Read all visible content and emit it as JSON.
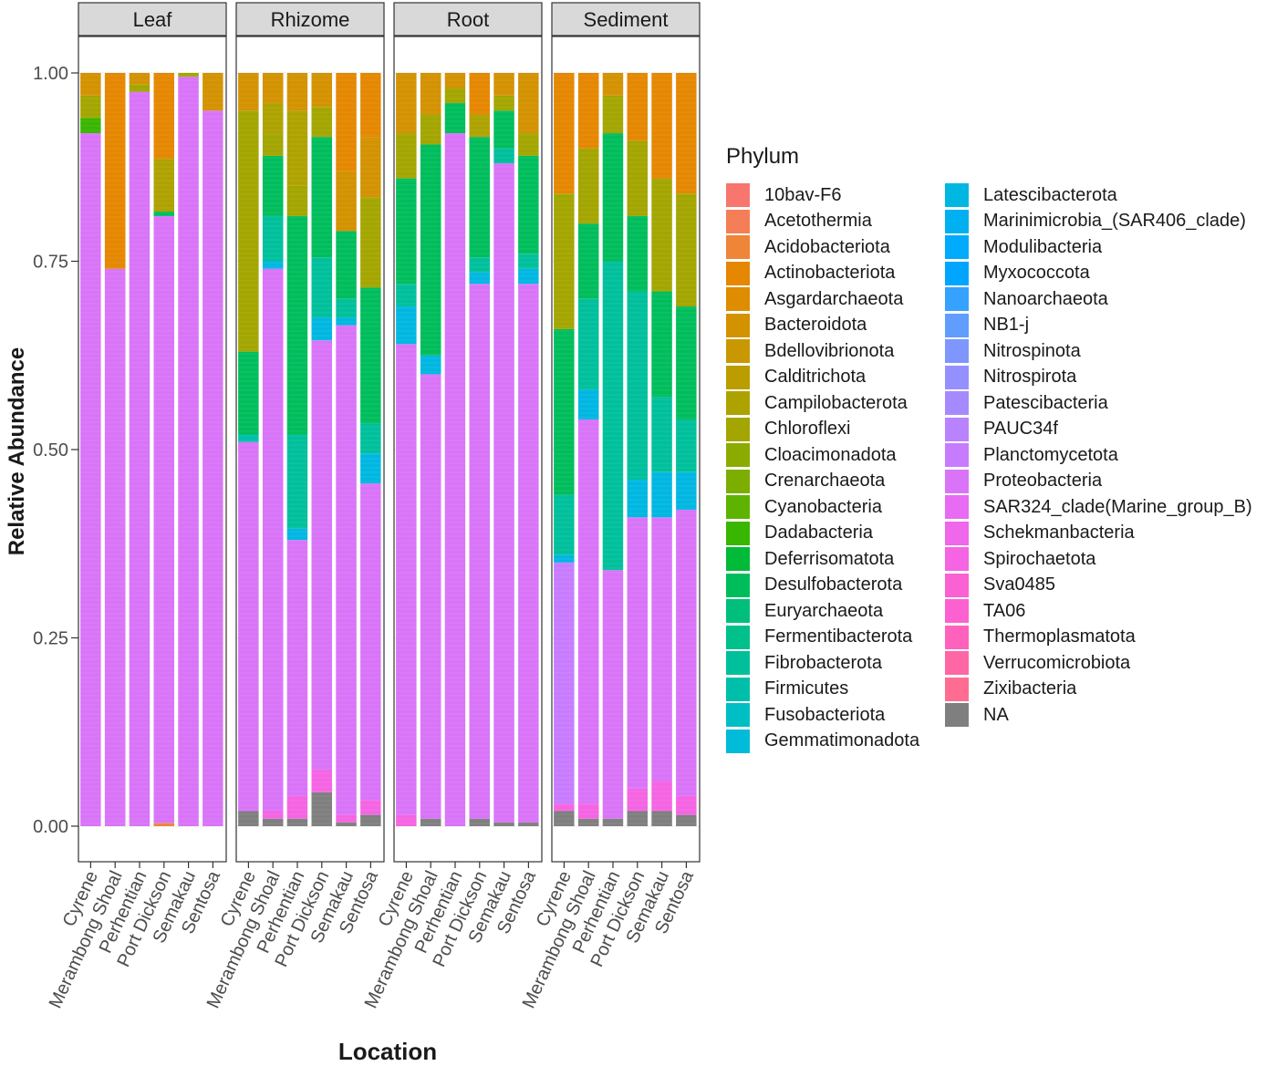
{
  "chart_data": {
    "type": "bar",
    "stacked": true,
    "facets": [
      "Leaf",
      "Rhizome",
      "Root",
      "Sediment"
    ],
    "categories": [
      "Cyrene",
      "Merambong Shoal",
      "Perhentian",
      "Port Dickson",
      "Semakau",
      "Sentosa"
    ],
    "xlabel": "Location",
    "ylabel": "Relative Abundance",
    "ylim": [
      0,
      1
    ],
    "yticks": [
      "0.00",
      "0.25",
      "0.50",
      "0.75",
      "1.00"
    ],
    "legend_title": "Phylum",
    "legend_position": "right",
    "legend": [
      {
        "name": "10bav-F6",
        "color": "#F8766D"
      },
      {
        "name": "Acetothermia",
        "color": "#F47E57"
      },
      {
        "name": "Acidobacteriota",
        "color": "#EE8538"
      },
      {
        "name": "Actinobacteriota",
        "color": "#E58700"
      },
      {
        "name": "Asgardarchaeota",
        "color": "#DE8C00"
      },
      {
        "name": "Bacteroidota",
        "color": "#D39200"
      },
      {
        "name": "Bdellovibrionota",
        "color": "#C99800"
      },
      {
        "name": "Calditrichota",
        "color": "#BB9D00"
      },
      {
        "name": "Campilobacterota",
        "color": "#AEA200"
      },
      {
        "name": "Chloroflexi",
        "color": "#A3A500"
      },
      {
        "name": "Cloacimonadota",
        "color": "#8CAB00"
      },
      {
        "name": "Crenarchaeota",
        "color": "#7CAE00"
      },
      {
        "name": "Cyanobacteria",
        "color": "#5EB300"
      },
      {
        "name": "Dadabacteria",
        "color": "#39B600"
      },
      {
        "name": "Deferrisomatota",
        "color": "#00BA38"
      },
      {
        "name": "Desulfobacterota",
        "color": "#00BD5C"
      },
      {
        "name": "Euryarchaeota",
        "color": "#00BF7D"
      },
      {
        "name": "Fermentibacterota",
        "color": "#00C08B"
      },
      {
        "name": "Fibrobacterota",
        "color": "#00C09B"
      },
      {
        "name": "Firmicutes",
        "color": "#00BFAA"
      },
      {
        "name": "Fusobacteriota",
        "color": "#00BFC4"
      },
      {
        "name": "Gemmatimonadota",
        "color": "#00BCD8"
      },
      {
        "name": "Latescibacterota",
        "color": "#00B7E2"
      },
      {
        "name": "Marinimicrobia_(SAR406_clade)",
        "color": "#00B0F0"
      },
      {
        "name": "Modulibacteria",
        "color": "#00ABFD"
      },
      {
        "name": "Myxococcota",
        "color": "#00A5FF"
      },
      {
        "name": "Nanoarchaeota",
        "color": "#35A2FF"
      },
      {
        "name": "NB1-j",
        "color": "#619CFF"
      },
      {
        "name": "Nitrospinota",
        "color": "#7F96FF"
      },
      {
        "name": "Nitrospirota",
        "color": "#9590FF"
      },
      {
        "name": "Patescibacteria",
        "color": "#A58AFF"
      },
      {
        "name": "PAUC34f",
        "color": "#B983FF"
      },
      {
        "name": "Planctomycetota",
        "color": "#C77CFF"
      },
      {
        "name": "Proteobacteria",
        "color": "#D974F8"
      },
      {
        "name": "SAR324_clade(Marine_group_B)",
        "color": "#E76BF3"
      },
      {
        "name": "Schekmanbacteria",
        "color": "#EF67EB"
      },
      {
        "name": "Spirochaetota",
        "color": "#F564E3"
      },
      {
        "name": "Sva0485",
        "color": "#FA62D4"
      },
      {
        "name": "TA06",
        "color": "#FD61D1"
      },
      {
        "name": "Thermoplasmatota",
        "color": "#FF62BC"
      },
      {
        "name": "Verrucomicrobiota",
        "color": "#FF67A4"
      },
      {
        "name": "Zixibacteria",
        "color": "#FF6C91"
      },
      {
        "name": "NA",
        "color": "#7F7F7F"
      }
    ],
    "series": {
      "Leaf": [
        [
          {
            "p": "NA",
            "v": 0.0
          },
          {
            "p": "Proteobacteria",
            "v": 0.92
          },
          {
            "p": "Dadabacteria",
            "v": 0.02
          },
          {
            "p": "Chloroflexi",
            "v": 0.03
          },
          {
            "p": "Bacteroidota",
            "v": 0.03
          }
        ],
        [
          {
            "p": "Proteobacteria",
            "v": 0.74
          },
          {
            "p": "Actinobacteriota",
            "v": 0.26
          }
        ],
        [
          {
            "p": "Proteobacteria",
            "v": 0.975
          },
          {
            "p": "Chloroflexi",
            "v": 0.01
          },
          {
            "p": "Bacteroidota",
            "v": 0.015
          }
        ],
        [
          {
            "p": "Acidobacteriota",
            "v": 0.004
          },
          {
            "p": "Proteobacteria",
            "v": 0.806
          },
          {
            "p": "Desulfobacterota",
            "v": 0.006
          },
          {
            "p": "Campilobacterota",
            "v": 0.07
          },
          {
            "p": "Actinobacteriota",
            "v": 0.114
          }
        ],
        [
          {
            "p": "Proteobacteria",
            "v": 0.995
          },
          {
            "p": "Chloroflexi",
            "v": 0.005
          }
        ],
        [
          {
            "p": "Proteobacteria",
            "v": 0.95
          },
          {
            "p": "Bacteroidota",
            "v": 0.05
          }
        ]
      ],
      "Rhizome": [
        [
          {
            "p": "NA",
            "v": 0.02
          },
          {
            "p": "Proteobacteria",
            "v": 0.49
          },
          {
            "p": "Firmicutes",
            "v": 0.01
          },
          {
            "p": "Desulfobacterota",
            "v": 0.11
          },
          {
            "p": "Chloroflexi",
            "v": 0.32
          },
          {
            "p": "Bacteroidota",
            "v": 0.05
          }
        ],
        [
          {
            "p": "NA",
            "v": 0.01
          },
          {
            "p": "Spirochaetota",
            "v": 0.01
          },
          {
            "p": "Proteobacteria",
            "v": 0.72
          },
          {
            "p": "Latescibacterota",
            "v": 0.01
          },
          {
            "p": "Fibrobacterota",
            "v": 0.06
          },
          {
            "p": "Desulfobacterota",
            "v": 0.08
          },
          {
            "p": "Chloroflexi",
            "v": 0.03
          },
          {
            "p": "Campilobacterota",
            "v": 0.04
          },
          {
            "p": "Bacteroidota",
            "v": 0.04
          }
        ],
        [
          {
            "p": "NA",
            "v": 0.01
          },
          {
            "p": "Spirochaetota",
            "v": 0.03
          },
          {
            "p": "Proteobacteria",
            "v": 0.34
          },
          {
            "p": "Latescibacterota",
            "v": 0.015
          },
          {
            "p": "Fibrobacterota",
            "v": 0.125
          },
          {
            "p": "Desulfobacterota",
            "v": 0.29
          },
          {
            "p": "Chloroflexi",
            "v": 0.04
          },
          {
            "p": "Campilobacterota",
            "v": 0.1
          },
          {
            "p": "Bacteroidota",
            "v": 0.05
          }
        ],
        [
          {
            "p": "NA",
            "v": 0.045
          },
          {
            "p": "Spirochaetota",
            "v": 0.03
          },
          {
            "p": "Proteobacteria",
            "v": 0.57
          },
          {
            "p": "Latescibacterota",
            "v": 0.03
          },
          {
            "p": "Fibrobacterota",
            "v": 0.08
          },
          {
            "p": "Desulfobacterota",
            "v": 0.16
          },
          {
            "p": "Chloroflexi",
            "v": 0.04
          },
          {
            "p": "Bacteroidota",
            "v": 0.045
          }
        ],
        [
          {
            "p": "NA",
            "v": 0.005
          },
          {
            "p": "Spirochaetota",
            "v": 0.01
          },
          {
            "p": "Proteobacteria",
            "v": 0.65
          },
          {
            "p": "Latescibacterota",
            "v": 0.01
          },
          {
            "p": "Fibrobacterota",
            "v": 0.025
          },
          {
            "p": "Desulfobacterota",
            "v": 0.09
          },
          {
            "p": "Bacteroidota",
            "v": 0.08
          },
          {
            "p": "Actinobacteriota",
            "v": 0.13
          }
        ],
        [
          {
            "p": "NA",
            "v": 0.015
          },
          {
            "p": "Spirochaetota",
            "v": 0.02
          },
          {
            "p": "Proteobacteria",
            "v": 0.42
          },
          {
            "p": "Latescibacterota",
            "v": 0.04
          },
          {
            "p": "Fibrobacterota",
            "v": 0.04
          },
          {
            "p": "Desulfobacterota",
            "v": 0.18
          },
          {
            "p": "Chloroflexi",
            "v": 0.12
          },
          {
            "p": "Bacteroidota",
            "v": 0.08
          },
          {
            "p": "Actinobacteriota",
            "v": 0.085
          }
        ]
      ],
      "Root": [
        [
          {
            "p": "Spirochaetota",
            "v": 0.015
          },
          {
            "p": "Proteobacteria",
            "v": 0.625
          },
          {
            "p": "Latescibacterota",
            "v": 0.05
          },
          {
            "p": "Fibrobacterota",
            "v": 0.03
          },
          {
            "p": "Desulfobacterota",
            "v": 0.14
          },
          {
            "p": "Chloroflexi",
            "v": 0.06
          },
          {
            "p": "Bacteroidota",
            "v": 0.08
          }
        ],
        [
          {
            "p": "NA",
            "v": 0.01
          },
          {
            "p": "Proteobacteria",
            "v": 0.59
          },
          {
            "p": "Latescibacterota",
            "v": 0.025
          },
          {
            "p": "Desulfobacterota",
            "v": 0.28
          },
          {
            "p": "Chloroflexi",
            "v": 0.04
          },
          {
            "p": "Bacteroidota",
            "v": 0.055
          }
        ],
        [
          {
            "p": "Proteobacteria",
            "v": 0.92
          },
          {
            "p": "Desulfobacterota",
            "v": 0.04
          },
          {
            "p": "Chloroflexi",
            "v": 0.02
          },
          {
            "p": "Bacteroidota",
            "v": 0.02
          }
        ],
        [
          {
            "p": "NA",
            "v": 0.01
          },
          {
            "p": "Proteobacteria",
            "v": 0.71
          },
          {
            "p": "Latescibacterota",
            "v": 0.015
          },
          {
            "p": "Fibrobacterota",
            "v": 0.02
          },
          {
            "p": "Desulfobacterota",
            "v": 0.16
          },
          {
            "p": "Campilobacterota",
            "v": 0.03
          },
          {
            "p": "Actinobacteriota",
            "v": 0.055
          }
        ],
        [
          {
            "p": "NA",
            "v": 0.005
          },
          {
            "p": "Proteobacteria",
            "v": 0.875
          },
          {
            "p": "Fibrobacterota",
            "v": 0.02
          },
          {
            "p": "Desulfobacterota",
            "v": 0.05
          },
          {
            "p": "Chloroflexi",
            "v": 0.02
          },
          {
            "p": "Bacteroidota",
            "v": 0.03
          }
        ],
        [
          {
            "p": "NA",
            "v": 0.005
          },
          {
            "p": "Proteobacteria",
            "v": 0.715
          },
          {
            "p": "Latescibacterota",
            "v": 0.02
          },
          {
            "p": "Fibrobacterota",
            "v": 0.02
          },
          {
            "p": "Desulfobacterota",
            "v": 0.13
          },
          {
            "p": "Chloroflexi",
            "v": 0.03
          },
          {
            "p": "Bacteroidota",
            "v": 0.08
          }
        ]
      ],
      "Sediment": [
        [
          {
            "p": "NA",
            "v": 0.02
          },
          {
            "p": "Spirochaetota",
            "v": 0.01
          },
          {
            "p": "Planctomycetota",
            "v": 0.32
          },
          {
            "p": "Latescibacterota",
            "v": 0.01
          },
          {
            "p": "Fibrobacterota",
            "v": 0.08
          },
          {
            "p": "Desulfobacterota",
            "v": 0.22
          },
          {
            "p": "Chloroflexi",
            "v": 0.18
          },
          {
            "p": "Actinobacteriota",
            "v": 0.16
          }
        ],
        [
          {
            "p": "NA",
            "v": 0.01
          },
          {
            "p": "Spirochaetota",
            "v": 0.02
          },
          {
            "p": "Proteobacteria",
            "v": 0.51
          },
          {
            "p": "Latescibacterota",
            "v": 0.04
          },
          {
            "p": "Fibrobacterota",
            "v": 0.12
          },
          {
            "p": "Desulfobacterota",
            "v": 0.1
          },
          {
            "p": "Chloroflexi",
            "v": 0.1
          },
          {
            "p": "Actinobacteriota",
            "v": 0.1
          }
        ],
        [
          {
            "p": "NA",
            "v": 0.01
          },
          {
            "p": "Proteobacteria",
            "v": 0.33
          },
          {
            "p": "Fibrobacterota",
            "v": 0.41
          },
          {
            "p": "Desulfobacterota",
            "v": 0.17
          },
          {
            "p": "Chloroflexi",
            "v": 0.05
          },
          {
            "p": "Bacteroidota",
            "v": 0.03
          }
        ],
        [
          {
            "p": "NA",
            "v": 0.02
          },
          {
            "p": "Spirochaetota",
            "v": 0.03
          },
          {
            "p": "Proteobacteria",
            "v": 0.36
          },
          {
            "p": "Latescibacterota",
            "v": 0.05
          },
          {
            "p": "Fibrobacterota",
            "v": 0.25
          },
          {
            "p": "Desulfobacterota",
            "v": 0.1
          },
          {
            "p": "Chloroflexi",
            "v": 0.1
          },
          {
            "p": "Actinobacteriota",
            "v": 0.09
          }
        ],
        [
          {
            "p": "NA",
            "v": 0.02
          },
          {
            "p": "Spirochaetota",
            "v": 0.04
          },
          {
            "p": "Proteobacteria",
            "v": 0.35
          },
          {
            "p": "Latescibacterota",
            "v": 0.06
          },
          {
            "p": "Fibrobacterota",
            "v": 0.1
          },
          {
            "p": "Desulfobacterota",
            "v": 0.14
          },
          {
            "p": "Chloroflexi",
            "v": 0.15
          },
          {
            "p": "Actinobacteriota",
            "v": 0.14
          }
        ],
        [
          {
            "p": "NA",
            "v": 0.015
          },
          {
            "p": "Spirochaetota",
            "v": 0.025
          },
          {
            "p": "Proteobacteria",
            "v": 0.38
          },
          {
            "p": "Latescibacterota",
            "v": 0.05
          },
          {
            "p": "Fibrobacterota",
            "v": 0.07
          },
          {
            "p": "Desulfobacterota",
            "v": 0.15
          },
          {
            "p": "Chloroflexi",
            "v": 0.15
          },
          {
            "p": "Actinobacteriota",
            "v": 0.16
          }
        ]
      ]
    }
  }
}
